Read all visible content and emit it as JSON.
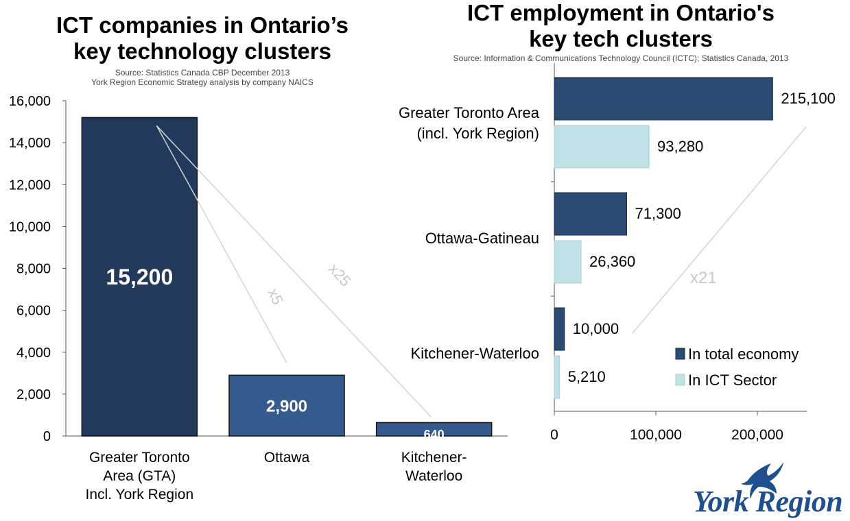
{
  "chart_data": [
    {
      "type": "bar",
      "title_lines": [
        "ICT companies in Ontario’s",
        "key technology clusters"
      ],
      "source_lines": [
        "Source: Statistics Canada CBP December 2013",
        "York Region Economic Strategy analysis by company NAICS"
      ],
      "categories": [
        [
          "Greater Toronto",
          "Area (GTA)",
          "Incl. York Region"
        ],
        [
          "Ottawa"
        ],
        [
          "Kitchener-",
          "Waterloo"
        ]
      ],
      "values": [
        15200,
        2900,
        640
      ],
      "data_labels": [
        "15,200",
        "2,900",
        "640"
      ],
      "ylim": [
        0,
        16000
      ],
      "yticks": [
        0,
        2000,
        4000,
        6000,
        8000,
        10000,
        12000,
        14000,
        16000
      ],
      "ytick_labels": [
        "0",
        "2,000",
        "4,000",
        "6,000",
        "8,000",
        "10,000",
        "12,000",
        "14,000",
        "16,000"
      ],
      "annotations": [
        "x5",
        "x25"
      ],
      "colors": {
        "bar_primary": "#23395b",
        "bar_secondary": "#355b8e"
      }
    },
    {
      "type": "bar",
      "orientation": "horizontal",
      "title_lines": [
        "ICT employment in Ontario's",
        "key tech clusters"
      ],
      "source": "Source: Information & Communications Technology Council (ICTC); Statistics Canada, 2013",
      "categories": [
        [
          "Greater Toronto Area",
          "(incl. York Region)"
        ],
        [
          "Ottawa-Gatineau"
        ],
        [
          "Kitchener-Waterloo"
        ]
      ],
      "series": [
        {
          "name": "In total economy",
          "values": [
            215100,
            71300,
            10000
          ],
          "labels": [
            "215,100",
            "71,300",
            "10,000"
          ],
          "color": "#2b4b72"
        },
        {
          "name": "In ICT Sector",
          "values": [
            93280,
            26360,
            5210
          ],
          "labels": [
            "93,280",
            "26,360",
            "5,210"
          ],
          "color": "#bfe2e6"
        }
      ],
      "xlim": [
        0,
        250000
      ],
      "xticks": [
        0,
        100000,
        200000
      ],
      "xtick_labels": [
        "0",
        "100,000",
        "200,000"
      ],
      "annotation": "x21",
      "legend_position": "bottom-right"
    }
  ],
  "logo": {
    "text": "York Region",
    "color": "#1f4f8f"
  }
}
